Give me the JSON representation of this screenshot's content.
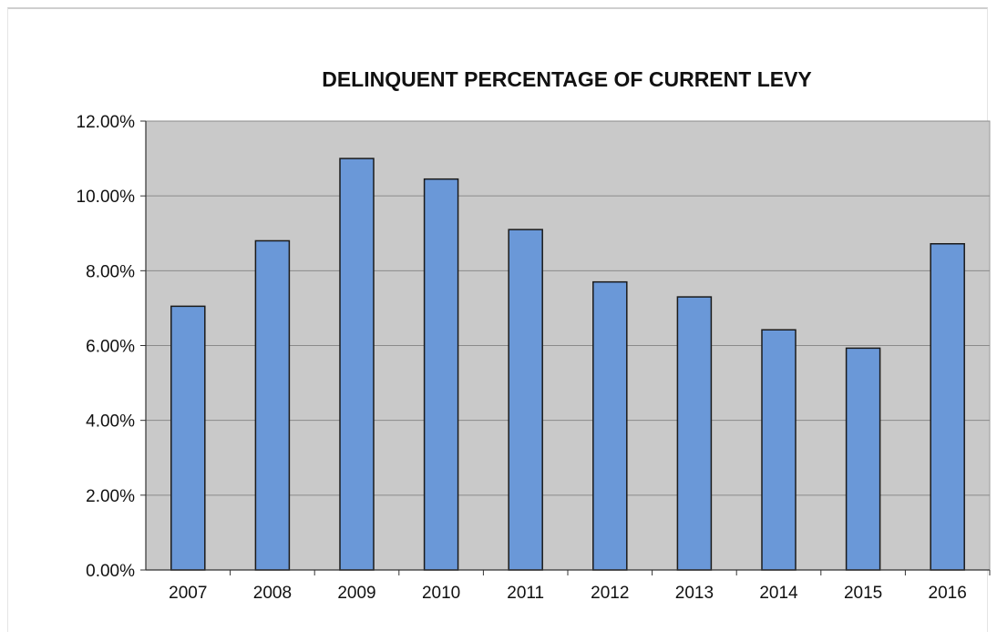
{
  "chart_data": {
    "type": "bar",
    "title": "DELINQUENT PERCENTAGE OF CURRENT LEVY",
    "xlabel": "",
    "ylabel": "",
    "categories": [
      "2007",
      "2008",
      "2009",
      "2010",
      "2011",
      "2012",
      "2013",
      "2014",
      "2015",
      "2016"
    ],
    "values": [
      7.05,
      8.8,
      11.0,
      10.45,
      9.1,
      7.7,
      7.3,
      6.42,
      5.93,
      8.72
    ],
    "ylim": [
      0,
      12
    ],
    "yticks": [
      0,
      2,
      4,
      6,
      8,
      10,
      12
    ],
    "ytick_labels": [
      "0.00%",
      "2.00%",
      "4.00%",
      "6.00%",
      "8.00%",
      "10.00%",
      "12.00%"
    ],
    "grid": true,
    "legend": "none",
    "colors": {
      "bar_fill": "#6a98d8",
      "bar_stroke": "#1a1a1a",
      "plot_background": "#c9c9c9",
      "gridline": "#8a8a8a"
    }
  }
}
